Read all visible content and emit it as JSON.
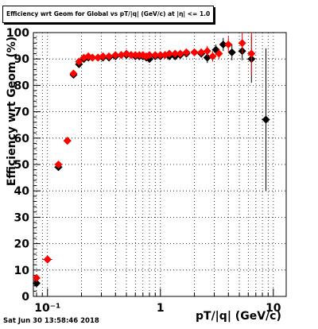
{
  "chart_data": {
    "type": "scatter",
    "title": "Efficiency wrt Geom for Global vs pT/|q| (GeV/c) at |η| <= 1.0",
    "xlabel": "pT/|q| (GeV/c)",
    "ylabel": "Efficiency wrt Geom (%)",
    "xscale": "log",
    "xlim": [
      0.075,
      13
    ],
    "ylim": [
      0,
      100
    ],
    "x_tick_labels": [
      "10⁻¹",
      "1",
      "10"
    ],
    "y_ticks": [
      0,
      10,
      20,
      30,
      40,
      50,
      60,
      70,
      80,
      90,
      100
    ],
    "grid": true,
    "series": [
      {
        "color": "#000000",
        "marker": "diamond",
        "points": [
          {
            "x": 0.08,
            "y": 5,
            "xerr": 0.005,
            "yerr": 1
          },
          {
            "x": 0.1,
            "y": 14,
            "xerr": 0.01,
            "yerr": 1
          },
          {
            "x": 0.125,
            "y": 49,
            "xerr": 0.01,
            "yerr": 1
          },
          {
            "x": 0.15,
            "y": 59,
            "xerr": 0.005,
            "yerr": 1
          },
          {
            "x": 0.17,
            "y": 84,
            "xerr": 0.005,
            "yerr": 1
          },
          {
            "x": 0.19,
            "y": 88,
            "xerr": 0.005,
            "yerr": 1
          },
          {
            "x": 0.21,
            "y": 90,
            "xerr": 0.005,
            "yerr": 1
          },
          {
            "x": 0.23,
            "y": 90.5,
            "xerr": 0.005,
            "yerr": 0.5
          },
          {
            "x": 0.25,
            "y": 90.5,
            "xerr": 0.005,
            "yerr": 0.5
          },
          {
            "x": 0.28,
            "y": 90.5,
            "xerr": 0.01,
            "yerr": 0.5
          },
          {
            "x": 0.31,
            "y": 90.5,
            "xerr": 0.01,
            "yerr": 0.5
          },
          {
            "x": 0.35,
            "y": 90.5,
            "xerr": 0.01,
            "yerr": 0.5
          },
          {
            "x": 0.4,
            "y": 91,
            "xerr": 0.02,
            "yerr": 0.5
          },
          {
            "x": 0.45,
            "y": 91.5,
            "xerr": 0.02,
            "yerr": 0.5
          },
          {
            "x": 0.5,
            "y": 91.5,
            "xerr": 0.02,
            "yerr": 0.5
          },
          {
            "x": 0.55,
            "y": 91.5,
            "xerr": 0.02,
            "yerr": 0.5
          },
          {
            "x": 0.6,
            "y": 91,
            "xerr": 0.02,
            "yerr": 0.5
          },
          {
            "x": 0.65,
            "y": 91,
            "xerr": 0.02,
            "yerr": 0.5
          },
          {
            "x": 0.7,
            "y": 91,
            "xerr": 0.02,
            "yerr": 0.5
          },
          {
            "x": 0.75,
            "y": 90.5,
            "xerr": 0.02,
            "yerr": 0.5
          },
          {
            "x": 0.8,
            "y": 90,
            "xerr": 0.02,
            "yerr": 1
          },
          {
            "x": 0.9,
            "y": 91,
            "xerr": 0.03,
            "yerr": 1
          },
          {
            "x": 1.0,
            "y": 91,
            "xerr": 0.04,
            "yerr": 1
          },
          {
            "x": 1.1,
            "y": 91.5,
            "xerr": 0.04,
            "yerr": 1
          },
          {
            "x": 1.2,
            "y": 91,
            "xerr": 0.04,
            "yerr": 1
          },
          {
            "x": 1.35,
            "y": 91,
            "xerr": 0.05,
            "yerr": 1
          },
          {
            "x": 1.5,
            "y": 91.5,
            "xerr": 0.05,
            "yerr": 1
          },
          {
            "x": 1.7,
            "y": 92,
            "xerr": 0.08,
            "yerr": 1
          },
          {
            "x": 2.0,
            "y": 92.5,
            "xerr": 0.1,
            "yerr": 1
          },
          {
            "x": 2.3,
            "y": 92,
            "xerr": 0.1,
            "yerr": 1.5
          },
          {
            "x": 2.6,
            "y": 90.5,
            "xerr": 0.15,
            "yerr": 2
          },
          {
            "x": 3.1,
            "y": 93.5,
            "xerr": 0.2,
            "yerr": 2
          },
          {
            "x": 3.6,
            "y": 95.5,
            "xerr": 0.25,
            "yerr": 2.5
          },
          {
            "x": 4.3,
            "y": 92.5,
            "xerr": 0.3,
            "yerr": 3
          },
          {
            "x": 5.3,
            "y": 93,
            "xerr": 0.4,
            "yerr": 3.5
          },
          {
            "x": 6.4,
            "y": 90,
            "xerr": 0.5,
            "yerr": 9
          },
          {
            "x": 8.6,
            "y": 67,
            "xerr": 0.7,
            "yerr": 27
          }
        ]
      },
      {
        "color": "#ff0000",
        "marker": "diamond",
        "points": [
          {
            "x": 0.08,
            "y": 7,
            "xerr": 0.005,
            "yerr": 1
          },
          {
            "x": 0.1,
            "y": 14,
            "xerr": 0.01,
            "yerr": 1
          },
          {
            "x": 0.125,
            "y": 50,
            "xerr": 0.01,
            "yerr": 1
          },
          {
            "x": 0.15,
            "y": 59,
            "xerr": 0.005,
            "yerr": 1
          },
          {
            "x": 0.17,
            "y": 84.5,
            "xerr": 0.005,
            "yerr": 1
          },
          {
            "x": 0.19,
            "y": 89,
            "xerr": 0.005,
            "yerr": 1
          },
          {
            "x": 0.21,
            "y": 90.5,
            "xerr": 0.005,
            "yerr": 1
          },
          {
            "x": 0.23,
            "y": 91,
            "xerr": 0.005,
            "yerr": 0.5
          },
          {
            "x": 0.25,
            "y": 90.5,
            "xerr": 0.005,
            "yerr": 0.5
          },
          {
            "x": 0.28,
            "y": 90.5,
            "xerr": 0.01,
            "yerr": 0.5
          },
          {
            "x": 0.31,
            "y": 91,
            "xerr": 0.01,
            "yerr": 0.5
          },
          {
            "x": 0.35,
            "y": 91,
            "xerr": 0.01,
            "yerr": 0.5
          },
          {
            "x": 0.4,
            "y": 91.5,
            "xerr": 0.02,
            "yerr": 0.5
          },
          {
            "x": 0.45,
            "y": 91.5,
            "xerr": 0.02,
            "yerr": 0.5
          },
          {
            "x": 0.5,
            "y": 92,
            "xerr": 0.02,
            "yerr": 0.5
          },
          {
            "x": 0.55,
            "y": 91.5,
            "xerr": 0.02,
            "yerr": 0.5
          },
          {
            "x": 0.6,
            "y": 91.5,
            "xerr": 0.02,
            "yerr": 0.5
          },
          {
            "x": 0.65,
            "y": 91.5,
            "xerr": 0.02,
            "yerr": 0.5
          },
          {
            "x": 0.7,
            "y": 91.5,
            "xerr": 0.02,
            "yerr": 0.5
          },
          {
            "x": 0.75,
            "y": 91,
            "xerr": 0.02,
            "yerr": 0.5
          },
          {
            "x": 0.8,
            "y": 91.5,
            "xerr": 0.02,
            "yerr": 1
          },
          {
            "x": 0.9,
            "y": 91.5,
            "xerr": 0.03,
            "yerr": 1
          },
          {
            "x": 1.0,
            "y": 91.5,
            "xerr": 0.04,
            "yerr": 1
          },
          {
            "x": 1.1,
            "y": 91.5,
            "xerr": 0.04,
            "yerr": 1
          },
          {
            "x": 1.2,
            "y": 92,
            "xerr": 0.04,
            "yerr": 1
          },
          {
            "x": 1.35,
            "y": 92,
            "xerr": 0.05,
            "yerr": 1
          },
          {
            "x": 1.5,
            "y": 92,
            "xerr": 0.05,
            "yerr": 1
          },
          {
            "x": 1.7,
            "y": 92.5,
            "xerr": 0.08,
            "yerr": 1
          },
          {
            "x": 2.0,
            "y": 92.5,
            "xerr": 0.1,
            "yerr": 1
          },
          {
            "x": 2.3,
            "y": 92.5,
            "xerr": 0.1,
            "yerr": 1.5
          },
          {
            "x": 2.6,
            "y": 93,
            "xerr": 0.15,
            "yerr": 2
          },
          {
            "x": 2.9,
            "y": 91,
            "xerr": 0.15,
            "yerr": 2
          },
          {
            "x": 3.3,
            "y": 92,
            "xerr": 0.2,
            "yerr": 2
          },
          {
            "x": 4.0,
            "y": 95.5,
            "xerr": 0.3,
            "yerr": 3
          },
          {
            "x": 5.3,
            "y": 96,
            "xerr": 0.4,
            "yerr": 4
          },
          {
            "x": 6.4,
            "y": 92,
            "xerr": 0.5,
            "yerr": 8
          }
        ]
      }
    ]
  },
  "footer": {
    "timestamp": "Sat Jun 30 13:58:46 2018"
  }
}
